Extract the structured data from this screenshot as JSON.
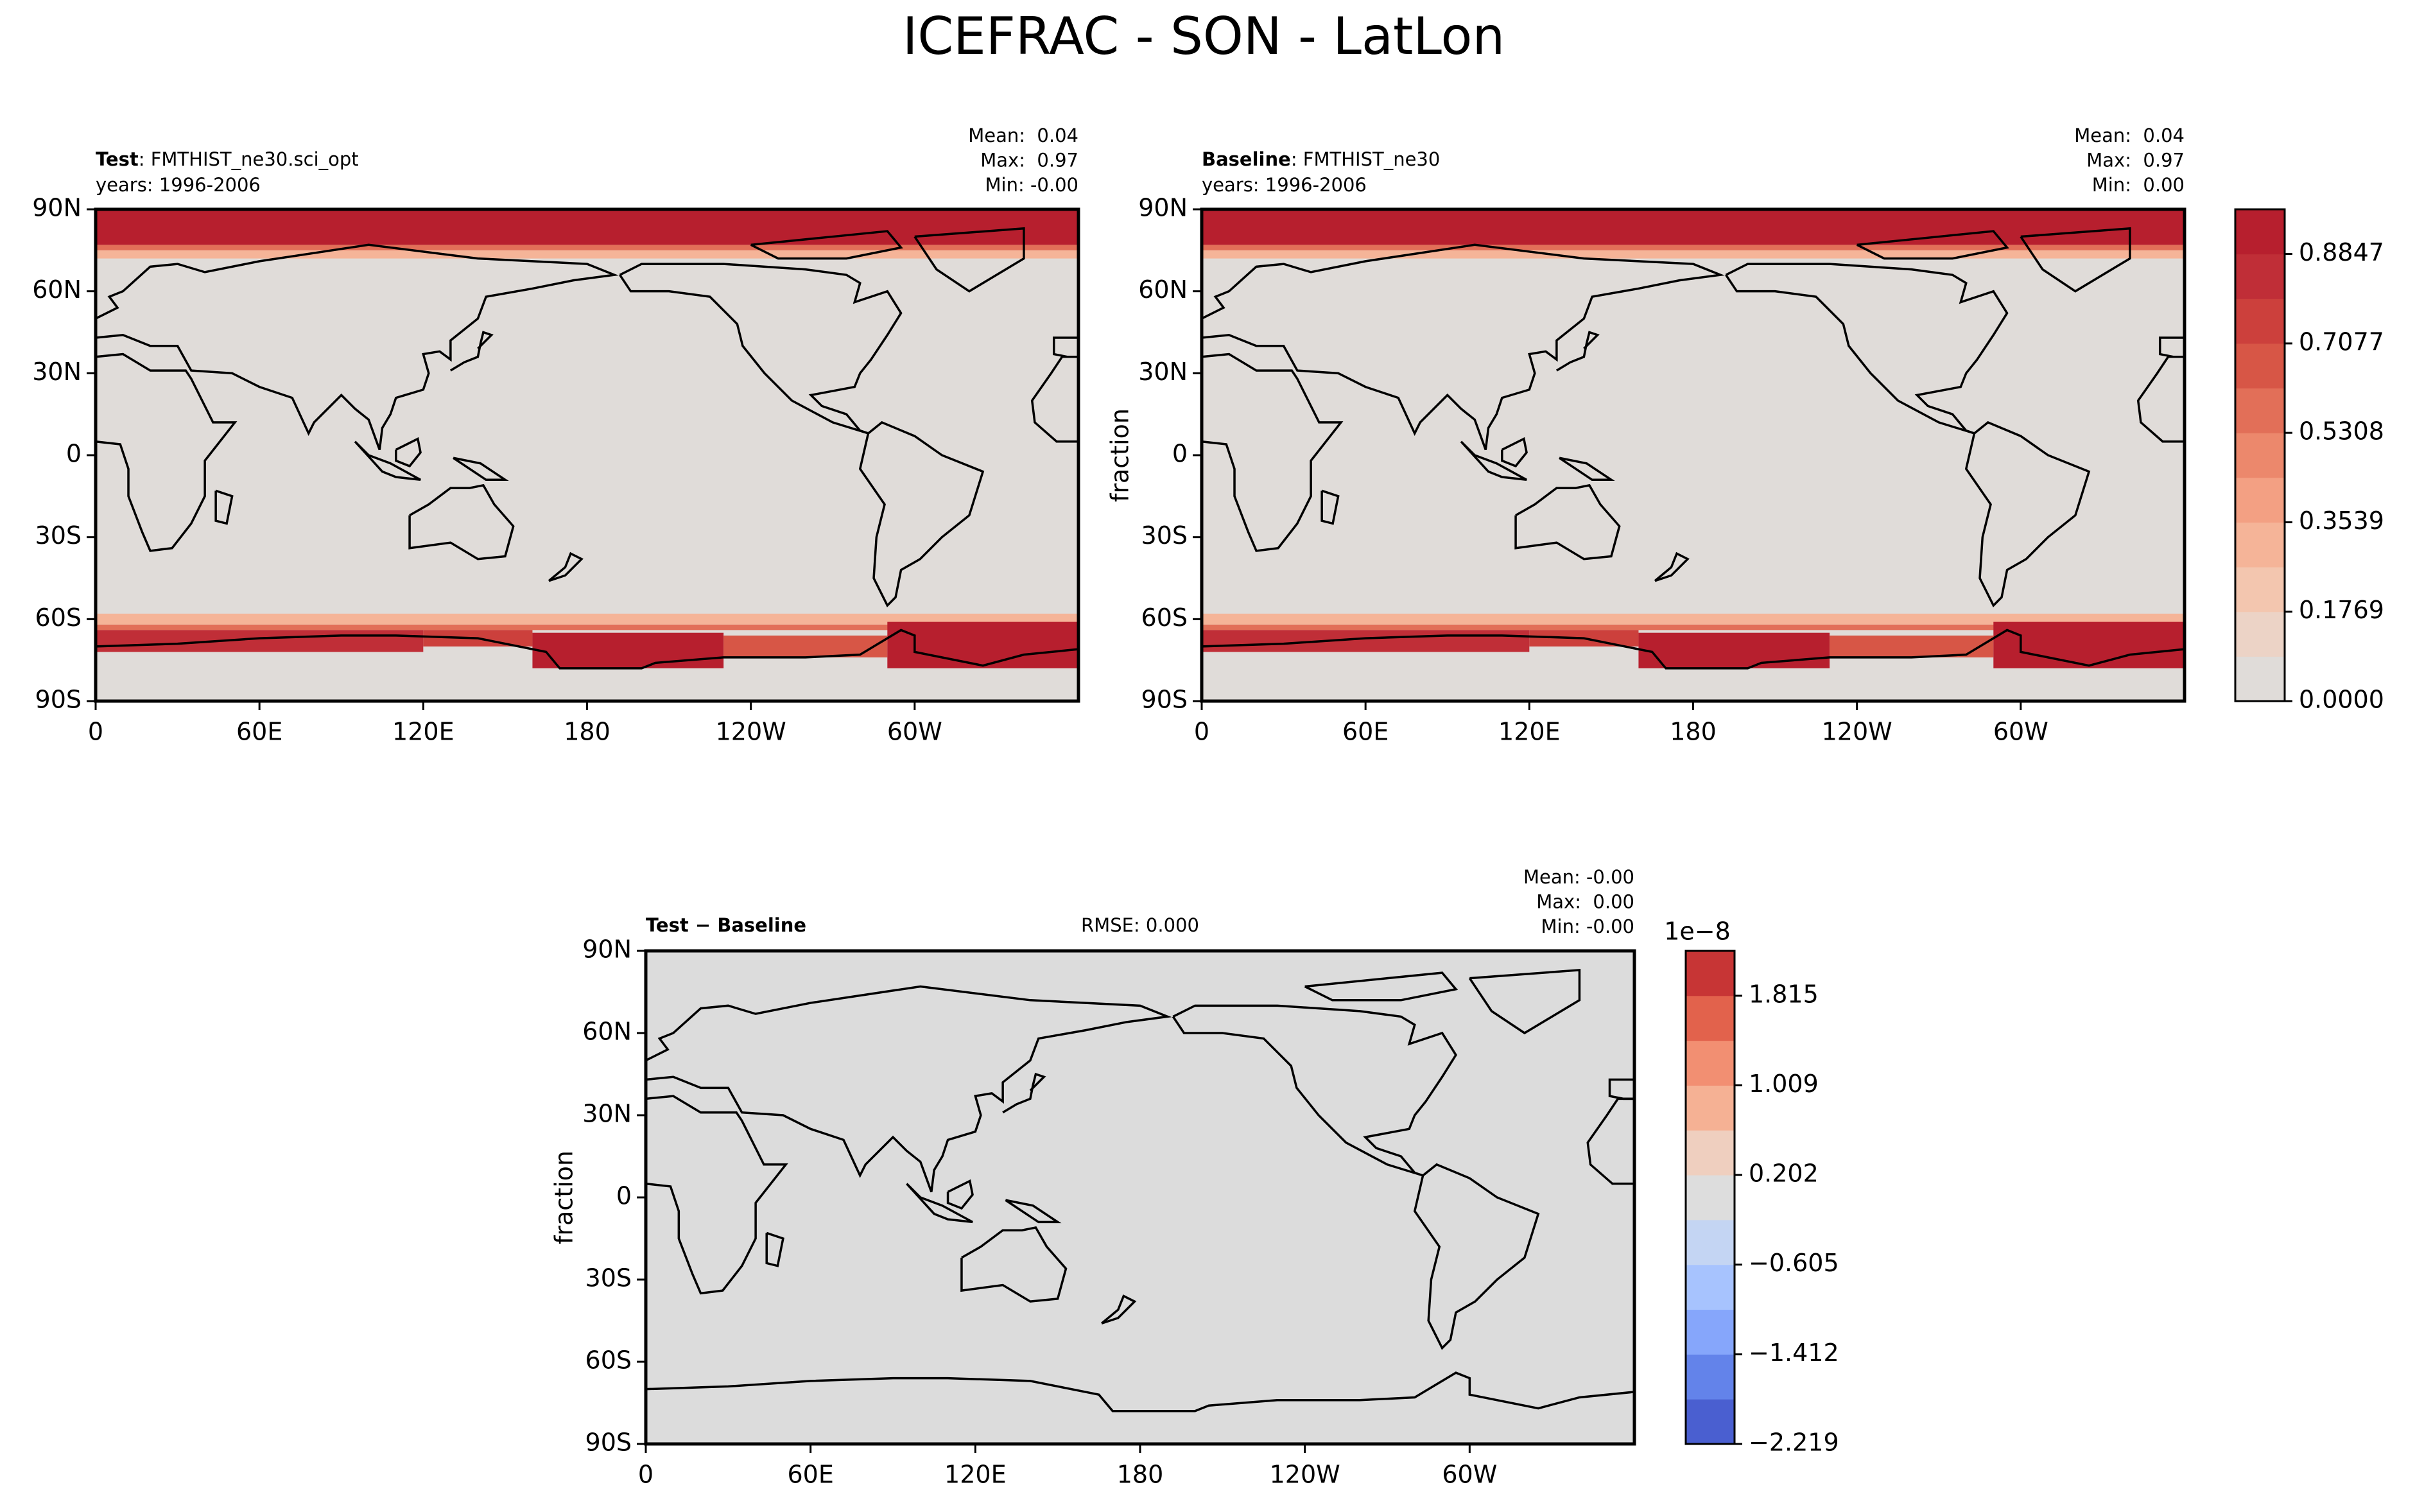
{
  "title": "ICEFRAC - SON - LatLon",
  "chart_data": [
    {
      "type": "map",
      "name_label": "Test",
      "case": ": FMTHIST_ne30.sci_opt",
      "years": "years: 1996-2006",
      "stats": [
        "Mean:  0.04",
        "Max:  0.97",
        "Min: -0.00"
      ],
      "background": "#e0dcd9",
      "xlim": [
        0,
        360
      ],
      "ylim": [
        -90,
        90
      ],
      "xticks": [
        0,
        {
          "value": 60,
          "label": "60E"
        },
        {
          "value": 120,
          "label": "120E"
        },
        180,
        {
          "value": 240,
          "label": "120W"
        },
        {
          "value": 300,
          "label": "60W"
        }
      ],
      "yticks": [
        {
          "value": 90,
          "label": "90N"
        },
        {
          "value": 60,
          "label": "60N"
        },
        {
          "value": 30,
          "label": "30N"
        },
        0,
        {
          "value": -30,
          "label": "30S"
        },
        {
          "value": -60,
          "label": "60S"
        },
        {
          "value": -90,
          "label": "90S"
        }
      ]
    },
    {
      "type": "map",
      "name_label": "Baseline",
      "case": ": FMTHIST_ne30",
      "years": "years: 1996-2006",
      "stats": [
        "Mean:  0.04",
        "Max:  0.97",
        "Min:  0.00"
      ],
      "ylabel": "fraction",
      "background": "#e0dcd9",
      "xlim": [
        0,
        360
      ],
      "ylim": [
        -90,
        90
      ],
      "xticks": [
        0,
        {
          "value": 60,
          "label": "60E"
        },
        {
          "value": 120,
          "label": "120E"
        },
        180,
        {
          "value": 240,
          "label": "120W"
        },
        {
          "value": 300,
          "label": "60W"
        }
      ],
      "yticks": [
        {
          "value": 90,
          "label": "90N"
        },
        {
          "value": 60,
          "label": "60N"
        },
        {
          "value": 30,
          "label": "30N"
        },
        0,
        {
          "value": -30,
          "label": "30S"
        },
        {
          "value": -60,
          "label": "60S"
        },
        {
          "value": -90,
          "label": "90S"
        }
      ]
    },
    {
      "type": "map",
      "name_label": "Test − Baseline",
      "rmse": "RMSE: 0.000",
      "stats": [
        "Mean: -0.00",
        "Max:  0.00",
        "Min: -0.00"
      ],
      "ylabel": "fraction",
      "background": "#dcdcdc",
      "xlim": [
        0,
        360
      ],
      "ylim": [
        -90,
        90
      ],
      "xticks": [
        0,
        {
          "value": 60,
          "label": "60E"
        },
        {
          "value": 120,
          "label": "120E"
        },
        180,
        {
          "value": 240,
          "label": "120W"
        },
        {
          "value": 300,
          "label": "60W"
        }
      ],
      "yticks": [
        {
          "value": 90,
          "label": "90N"
        },
        {
          "value": 60,
          "label": "60N"
        },
        {
          "value": 30,
          "label": "30N"
        },
        0,
        {
          "value": -30,
          "label": "30S"
        },
        {
          "value": -60,
          "label": "60S"
        },
        {
          "value": -90,
          "label": "90S"
        }
      ]
    }
  ],
  "colorbars": [
    {
      "lim": [
        0,
        0.9731
      ],
      "colors": [
        "#e0dcd9",
        "#ecd3c6",
        "#f3c6af",
        "#f5b498",
        "#f3a083",
        "#ec886c",
        "#e26f58",
        "#d75646",
        "#cc403c",
        "#c02e37",
        "#b71f2e"
      ],
      "ticks": [
        {
          "value": 0,
          "label": "0.0000"
        },
        0.1769,
        0.3539,
        0.5308,
        0.7077,
        0.8847
      ]
    },
    {
      "lim": [
        -2.219,
        2.219
      ],
      "offset_label": "1e−8",
      "colors": [
        "#4a5fd0",
        "#6383ea",
        "#86a6fb",
        "#a7c3fe",
        "#c4d5f3",
        "#dddddd",
        "#efcfbf",
        "#f5b194",
        "#f28f72",
        "#e2624c",
        "#c73535"
      ],
      "ticks": [
        {
          "value": -2.219,
          "label": "−2.219"
        },
        {
          "value": -1.412,
          "label": "−1.412"
        },
        {
          "value": -0.605,
          "label": "−0.605"
        },
        0.202,
        1.009,
        1.815
      ]
    }
  ]
}
